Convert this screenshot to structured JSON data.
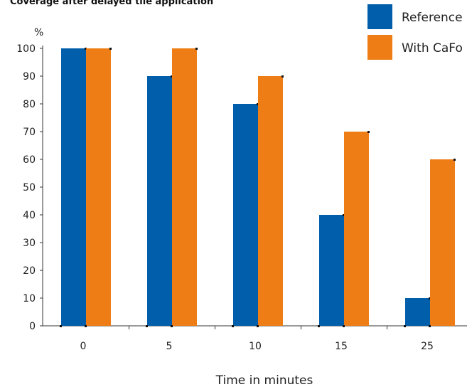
{
  "chart_data": {
    "type": "bar",
    "title": "Coverage after delayed tile application",
    "ylabel": "%",
    "xlabel": "Time in minutes",
    "categories": [
      "0",
      "5",
      "10",
      "15",
      "25"
    ],
    "ylim": [
      0,
      100
    ],
    "yticks": [
      0,
      10,
      20,
      30,
      40,
      50,
      60,
      70,
      80,
      90,
      100
    ],
    "grid": false,
    "legend_position": "top-right",
    "series": [
      {
        "name": "Reference",
        "color": "#005eab",
        "values": [
          100,
          90,
          80,
          40,
          10
        ]
      },
      {
        "name": "With CaFo",
        "color": "#ef7d15",
        "values": [
          100,
          100,
          90,
          70,
          60
        ]
      }
    ]
  }
}
